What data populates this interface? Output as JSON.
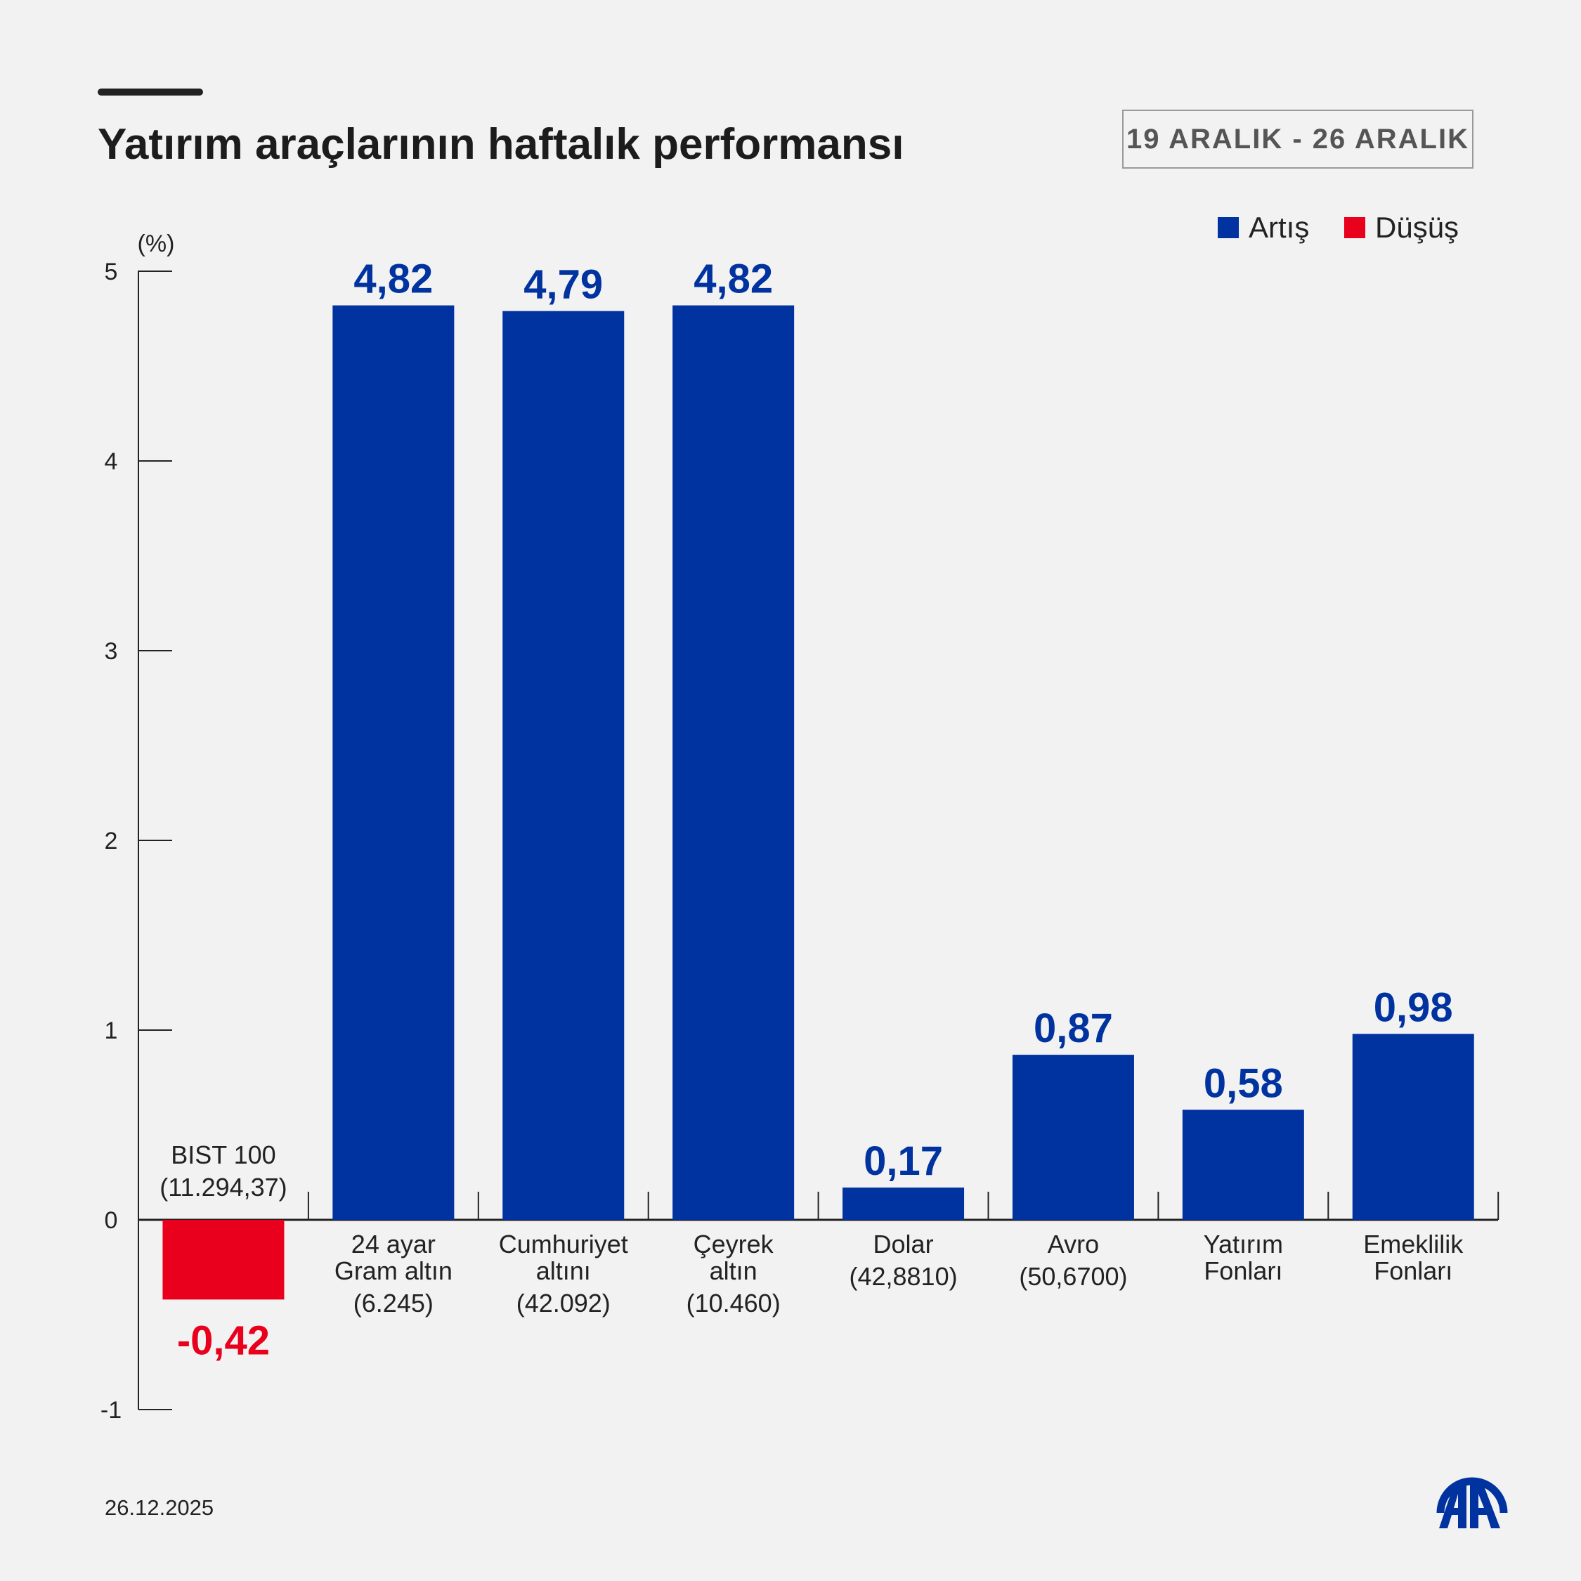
{
  "header": {
    "title": "Yatırım araçlarının haftalık performansı",
    "date_range": "19 ARALIK - 26 ARALIK"
  },
  "legend": [
    {
      "label": "Artış",
      "color": "#0033a0"
    },
    {
      "label": "Düşüş",
      "color": "#e8001c"
    }
  ],
  "chart_data": {
    "type": "bar",
    "ylabel": "(%)",
    "ylim": [
      -1,
      5
    ],
    "yticks": [
      5,
      4,
      3,
      2,
      1,
      0,
      -1
    ],
    "grid": false,
    "legend_position": "top-right",
    "categories": [
      [
        "BIST 100",
        "(11.294,37)"
      ],
      [
        "24 ayar",
        "Gram altın",
        "(6.245)"
      ],
      [
        "Cumhuriyet",
        "altını",
        "(42.092)"
      ],
      [
        "Çeyrek",
        "altın",
        "(10.460)"
      ],
      [
        "Dolar",
        "(42,8810)"
      ],
      [
        "Avro",
        "(50,6700)"
      ],
      [
        "Yatırım",
        "Fonları"
      ],
      [
        "Emeklilik",
        "Fonları"
      ]
    ],
    "values": [
      -0.42,
      4.82,
      4.79,
      4.82,
      0.17,
      0.87,
      0.58,
      0.98
    ],
    "value_labels": [
      "-0,42",
      "4,82",
      "4,79",
      "4,82",
      "0,17",
      "0,87",
      "0,58",
      "0,98"
    ],
    "positive_color": "#0033a0",
    "negative_color": "#e8001c"
  },
  "footer": {
    "date": "26.12.2025",
    "logo_text": "AA"
  }
}
